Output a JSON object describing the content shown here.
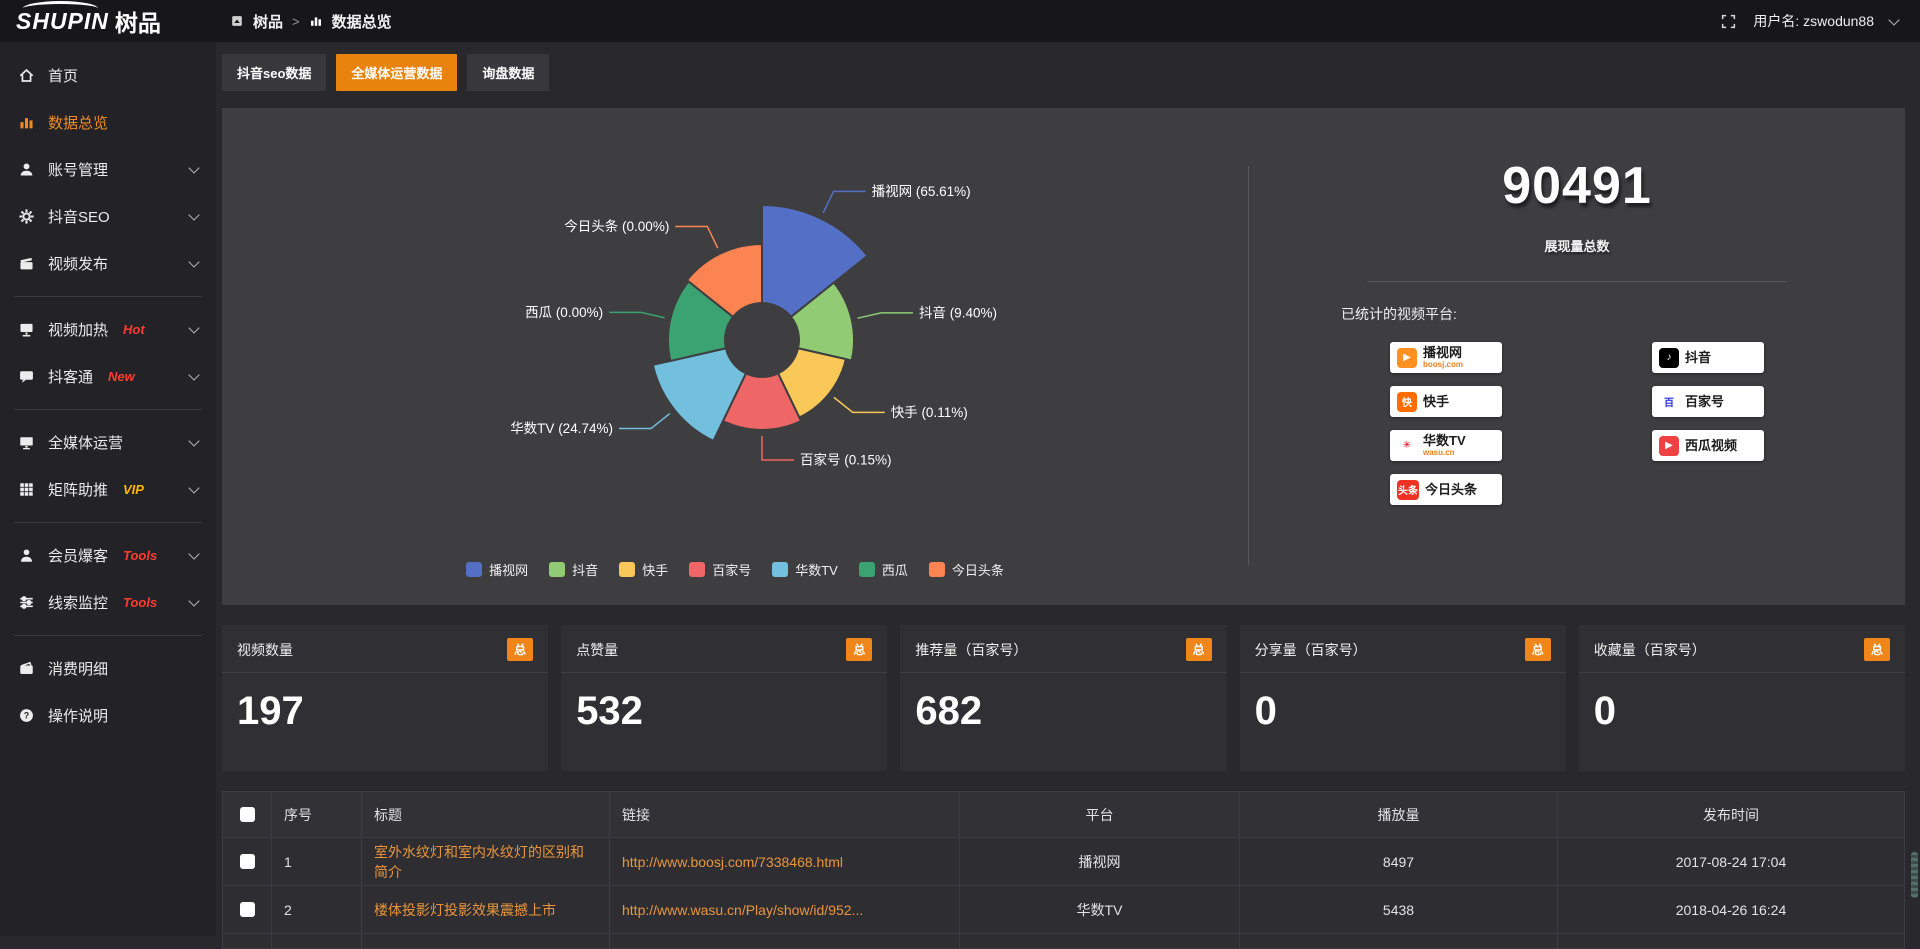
{
  "colors": {
    "accent_orange": "#e8830d",
    "sidebar_active": "#f08c1e",
    "link_orange": "#e9953c",
    "badge_red": "#ff3b30",
    "badge_vip": "#ffb400",
    "panel_bg": "#3e3e41"
  },
  "topbar": {
    "logo_en": "SHUPIN",
    "logo_cn": "树品",
    "breadcrumb": {
      "app": "树品",
      "separator": ">",
      "page": "数据总览"
    },
    "username": "用户名: zswodun88"
  },
  "sidebar": {
    "items": [
      {
        "id": "home",
        "label": "首页",
        "icon": "home"
      },
      {
        "id": "data-overview",
        "label": "数据总览",
        "icon": "chart",
        "active": true
      },
      {
        "id": "account-management",
        "label": "账号管理",
        "icon": "user",
        "chevron": true
      },
      {
        "id": "douyin-seo",
        "label": "抖音SEO",
        "icon": "gear",
        "chevron": true
      },
      {
        "id": "video-publish",
        "label": "视频发布",
        "icon": "video",
        "chevron": true
      },
      {
        "divider": true
      },
      {
        "id": "video-heat",
        "label": "视频加热",
        "icon": "screen",
        "badge": "Hot",
        "badge_color": "#ff3b30",
        "chevron": true
      },
      {
        "id": "douketong",
        "label": "抖客通",
        "icon": "chat",
        "badge": "New",
        "badge_color": "#ff3b30",
        "chevron": true
      },
      {
        "divider": true
      },
      {
        "id": "all-media",
        "label": "全媒体运营",
        "icon": "monitor",
        "chevron": true
      },
      {
        "id": "matrix-boost",
        "label": "矩阵助推",
        "icon": "grid",
        "badge": "VIP",
        "badge_color": "#ffb400",
        "chevron": true
      },
      {
        "divider": true
      },
      {
        "id": "member-burst",
        "label": "会员爆客",
        "icon": "person",
        "badge": "Tools",
        "badge_color": "#ff3b30",
        "chevron": true
      },
      {
        "id": "lead-monitor",
        "label": "线索监控",
        "icon": "sliders",
        "badge": "Tools",
        "badge_color": "#ff3b30",
        "chevron": true
      },
      {
        "divider": true
      },
      {
        "id": "consume-detail",
        "label": "消费明细",
        "icon": "wallet"
      },
      {
        "id": "operation-guide",
        "label": "操作说明",
        "icon": "question"
      }
    ]
  },
  "tabs": [
    {
      "id": "douyin-seo-data",
      "label": "抖音seo数据"
    },
    {
      "id": "all-media-data",
      "label": "全媒体运营数据",
      "active": true
    },
    {
      "id": "inquiry-data",
      "label": "询盘数据"
    }
  ],
  "chart_data": {
    "type": "pie",
    "subtype": "nightingale-rose",
    "title": "",
    "legend_position": "bottom",
    "inner_radius": 37,
    "series": [
      {
        "name": "播视网",
        "percent": 65.61,
        "color": "#5470c6",
        "display_radius": 135
      },
      {
        "name": "抖音",
        "percent": 9.4,
        "color": "#91cc75",
        "display_radius": 92
      },
      {
        "name": "快手",
        "percent": 0.11,
        "color": "#fac858",
        "display_radius": 86
      },
      {
        "name": "百家号",
        "percent": 0.15,
        "color": "#ee6666",
        "display_radius": 90
      },
      {
        "name": "华数TV",
        "percent": 24.74,
        "color": "#73c0de",
        "display_radius": 112
      },
      {
        "name": "西瓜",
        "percent": 0.0,
        "color": "#3ba272",
        "display_radius": 94
      },
      {
        "name": "今日头条",
        "percent": 0.0,
        "color": "#fc8452",
        "display_radius": 96
      }
    ]
  },
  "summary": {
    "total": "90491",
    "total_label": "展现量总数",
    "platforms_title": "已统计的视频平台:",
    "platform_columns": [
      [
        {
          "id": "boosj",
          "name": "播视网",
          "sub": "boosj.com",
          "icon_char": "▶",
          "icon_bg": "#ff9021",
          "icon_color": "#ffffff"
        },
        {
          "id": "kuaishou",
          "name": "快手",
          "icon_char": "快",
          "icon_bg": "#ff6d00",
          "icon_color": "#ffffff"
        },
        {
          "id": "wasu",
          "name": "华数TV",
          "sub": "wasu.cn",
          "icon_char": "✳",
          "icon_bg": "#ffffff",
          "icon_color": "#e60012"
        },
        {
          "id": "toutiao",
          "name": "今日头条",
          "icon_char": "头条",
          "icon_bg": "#ed3224",
          "icon_color": "#ffffff"
        }
      ],
      [
        {
          "id": "douyin",
          "name": "抖音",
          "icon_char": "♪",
          "icon_bg": "#000000",
          "icon_color": "#ffffff"
        },
        {
          "id": "baijiahao",
          "name": "百家号",
          "icon_char": "百",
          "icon_bg": "#ffffff",
          "icon_color": "#2932e1"
        },
        {
          "id": "xigua",
          "name": "西瓜视频",
          "icon_char": "▶",
          "icon_bg": "#f04142",
          "icon_color": "#ffffff"
        }
      ]
    ]
  },
  "stat_cards": [
    {
      "id": "video-count",
      "title": "视频数量",
      "badge": "总",
      "value": "197"
    },
    {
      "id": "like-count",
      "title": "点赞量",
      "badge": "总",
      "value": "532"
    },
    {
      "id": "recommend-count",
      "title": "推荐量（百家号）",
      "badge": "总",
      "value": "682"
    },
    {
      "id": "share-count",
      "title": "分享量（百家号）",
      "badge": "总",
      "value": "0"
    },
    {
      "id": "favorite-count",
      "title": "收藏量（百家号）",
      "badge": "总",
      "value": "0"
    }
  ],
  "table": {
    "headers": [
      "序号",
      "标题",
      "链接",
      "平台",
      "播放量",
      "发布时间"
    ],
    "rows": [
      {
        "seq": "1",
        "title": "室外水纹灯和室内水纹灯的区别和简介",
        "link": "http://www.boosj.com/7338468.html",
        "platform": "播视网",
        "plays": "8497",
        "time": "2017-08-24 17:04"
      },
      {
        "seq": "2",
        "title": "楼体投影灯投影效果震撼上市",
        "link": "http://www.wasu.cn/Play/show/id/952...",
        "platform": "华数TV",
        "plays": "5438",
        "time": "2018-04-26 16:24"
      }
    ]
  }
}
